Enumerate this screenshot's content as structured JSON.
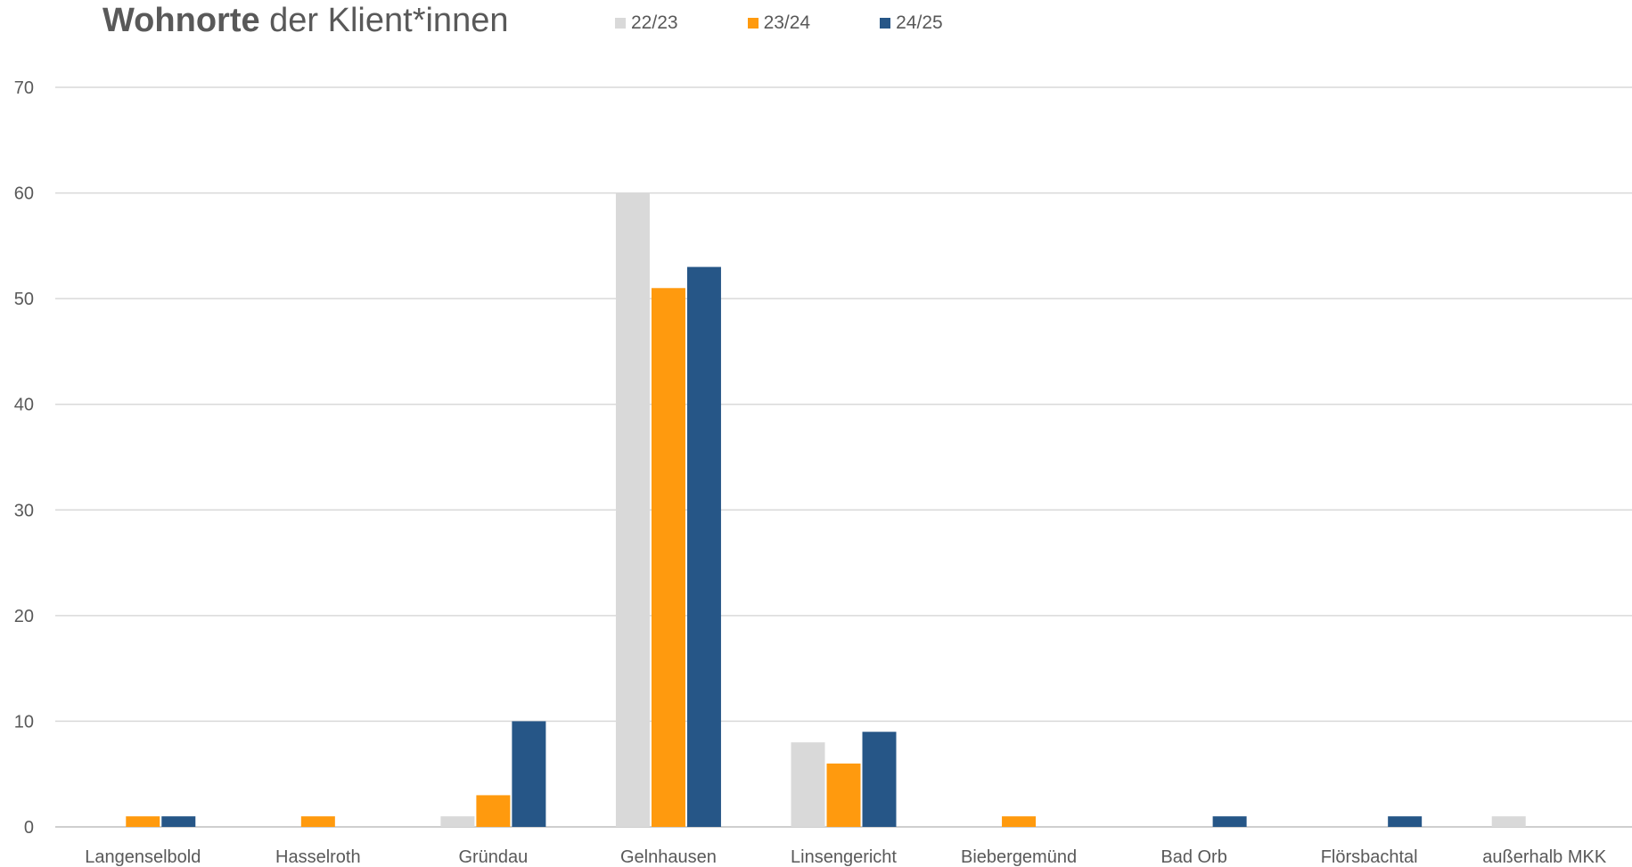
{
  "chart_data": {
    "type": "bar",
    "title_bold": "Wohnorte",
    "title_rest": " der Klient*innen",
    "categories": [
      "Langenselbold",
      "Hasselroth",
      "Gründau",
      "Gelnhausen",
      "Linsengericht",
      "Biebergemünd",
      "Bad Orb",
      "Flörsbachtal",
      "außerhalb MKK"
    ],
    "series": [
      {
        "name": "22/23",
        "color": "#d9d9d9",
        "values": [
          0,
          0,
          1,
          60,
          8,
          0,
          0,
          0,
          1
        ]
      },
      {
        "name": "23/24",
        "color": "#ff9a0e",
        "values": [
          1,
          1,
          3,
          51,
          6,
          1,
          0,
          0,
          0
        ]
      },
      {
        "name": "24/25",
        "color": "#265687",
        "values": [
          1,
          0,
          10,
          53,
          9,
          0,
          1,
          1,
          0
        ]
      }
    ],
    "yticks": [
      "0",
      "10",
      "20",
      "30",
      "40",
      "50",
      "60",
      "70"
    ],
    "ylim": [
      0,
      70
    ],
    "grid": true,
    "legend_position": "top"
  }
}
